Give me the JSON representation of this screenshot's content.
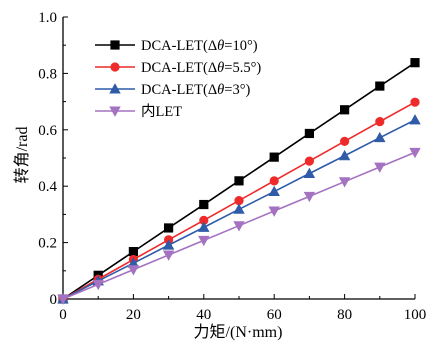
{
  "chart_data": {
    "type": "line",
    "title": "",
    "xlabel": "力矩/(N·mm)",
    "ylabel": "转角/rad",
    "xlim": [
      0,
      100
    ],
    "ylim": [
      0,
      1.0
    ],
    "xticks": [
      0,
      20,
      40,
      60,
      80,
      100
    ],
    "xtick_labels": [
      "0",
      "20",
      "40",
      "60",
      "80",
      "100"
    ],
    "yticks": [
      0,
      0.2,
      0.4,
      0.6,
      0.8,
      1.0
    ],
    "ytick_labels": [
      "0",
      "0.2",
      "0.4",
      "0.6",
      "0.8",
      "1.0"
    ],
    "grid": false,
    "legend_position": "top-left",
    "x": [
      0,
      10,
      20,
      30,
      40,
      50,
      60,
      70,
      80,
      90,
      100
    ],
    "series": [
      {
        "name": "DCA-LET(Δθ=10°)",
        "name_prefix": "DCA-LET(Δ",
        "name_theta": "θ",
        "name_suffix": "=10°)",
        "color": "#000000",
        "marker": "square",
        "values": [
          0,
          0.084,
          0.168,
          0.252,
          0.335,
          0.419,
          0.503,
          0.587,
          0.671,
          0.755,
          0.838
        ]
      },
      {
        "name": "DCA-LET(Δθ=5.5°)",
        "name_prefix": "DCA-LET(Δ",
        "name_theta": "θ",
        "name_suffix": "=5.5°)",
        "color": "#ee2a2a",
        "marker": "circle",
        "values": [
          0,
          0.07,
          0.14,
          0.21,
          0.279,
          0.349,
          0.419,
          0.489,
          0.559,
          0.629,
          0.698
        ]
      },
      {
        "name": "DCA-LET(Δθ=3°)",
        "name_prefix": "DCA-LET(Δ",
        "name_theta": "θ",
        "name_suffix": "=3°)",
        "color": "#2f5ba8",
        "marker": "triangle-up",
        "values": [
          0,
          0.064,
          0.127,
          0.191,
          0.254,
          0.318,
          0.381,
          0.445,
          0.508,
          0.572,
          0.635
        ]
      },
      {
        "name": "内LET",
        "name_prefix": "内LET",
        "name_theta": "",
        "name_suffix": "",
        "color": "#a472c0",
        "marker": "triangle-down",
        "values": [
          0,
          0.052,
          0.104,
          0.156,
          0.208,
          0.26,
          0.312,
          0.364,
          0.416,
          0.468,
          0.52
        ]
      }
    ]
  }
}
